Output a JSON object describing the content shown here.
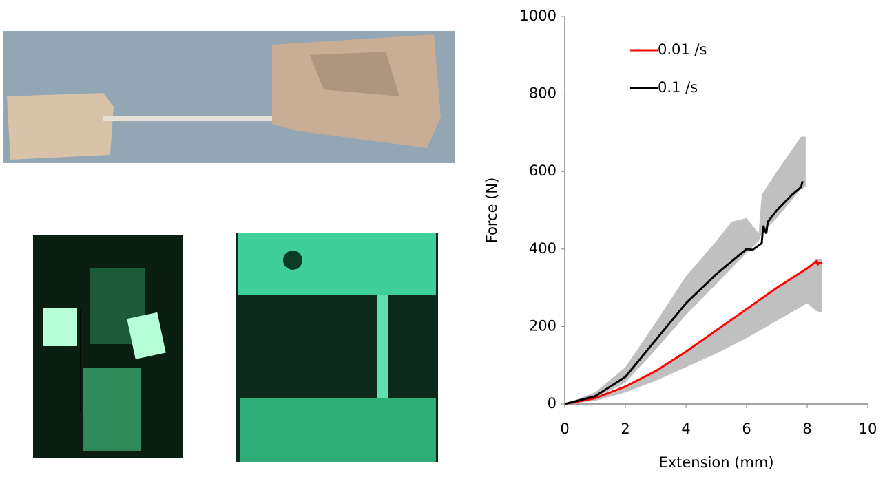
{
  "chart_data": {
    "type": "line",
    "x_label": "Extension (mm)",
    "y_label": "Force (N)",
    "xlim": [
      0,
      10
    ],
    "xticks": [
      0,
      2,
      4,
      6,
      8,
      10
    ],
    "ylim": [
      0,
      1000
    ],
    "yticks": [
      0,
      200,
      400,
      600,
      800,
      1000
    ],
    "legend": "upper left",
    "bands": [
      {
        "color": "#c0c0c0",
        "x": [
          0,
          1,
          2,
          3,
          4,
          5,
          6,
          7,
          8,
          8.3,
          8.5
        ],
        "lower": [
          0,
          8,
          30,
          60,
          95,
          130,
          170,
          215,
          260,
          240,
          235
        ],
        "upper": [
          0,
          15,
          45,
          85,
          135,
          190,
          245,
          300,
          350,
          375,
          375
        ]
      },
      {
        "color": "#c0c0c0",
        "x": [
          0,
          1,
          2,
          3,
          4,
          5,
          5.5,
          6,
          6.4,
          6.5,
          7,
          7.8,
          7.95
        ],
        "lower": [
          0,
          15,
          55,
          140,
          230,
          310,
          350,
          390,
          420,
          440,
          480,
          555,
          560
        ],
        "upper": [
          0,
          30,
          95,
          210,
          330,
          420,
          470,
          480,
          440,
          540,
          600,
          690,
          690
        ]
      }
    ],
    "series": [
      {
        "name": "0.01 /s",
        "color": "#ff0000",
        "x": [
          0,
          1,
          2,
          3,
          4,
          5,
          6,
          7,
          8,
          8.3,
          8.35,
          8.4,
          8.5
        ],
        "values": [
          0,
          15,
          45,
          85,
          135,
          190,
          245,
          300,
          350,
          368,
          360,
          365,
          362
        ]
      },
      {
        "name": "0.1 /s",
        "color": "#000000",
        "x": [
          0,
          1,
          2,
          3,
          4,
          5,
          6,
          6.2,
          6.5,
          6.55,
          6.65,
          6.7,
          7,
          7.5,
          7.8,
          7.85
        ],
        "values": [
          0,
          20,
          70,
          165,
          260,
          335,
          400,
          398,
          415,
          460,
          440,
          470,
          500,
          540,
          560,
          575
        ]
      }
    ]
  }
}
